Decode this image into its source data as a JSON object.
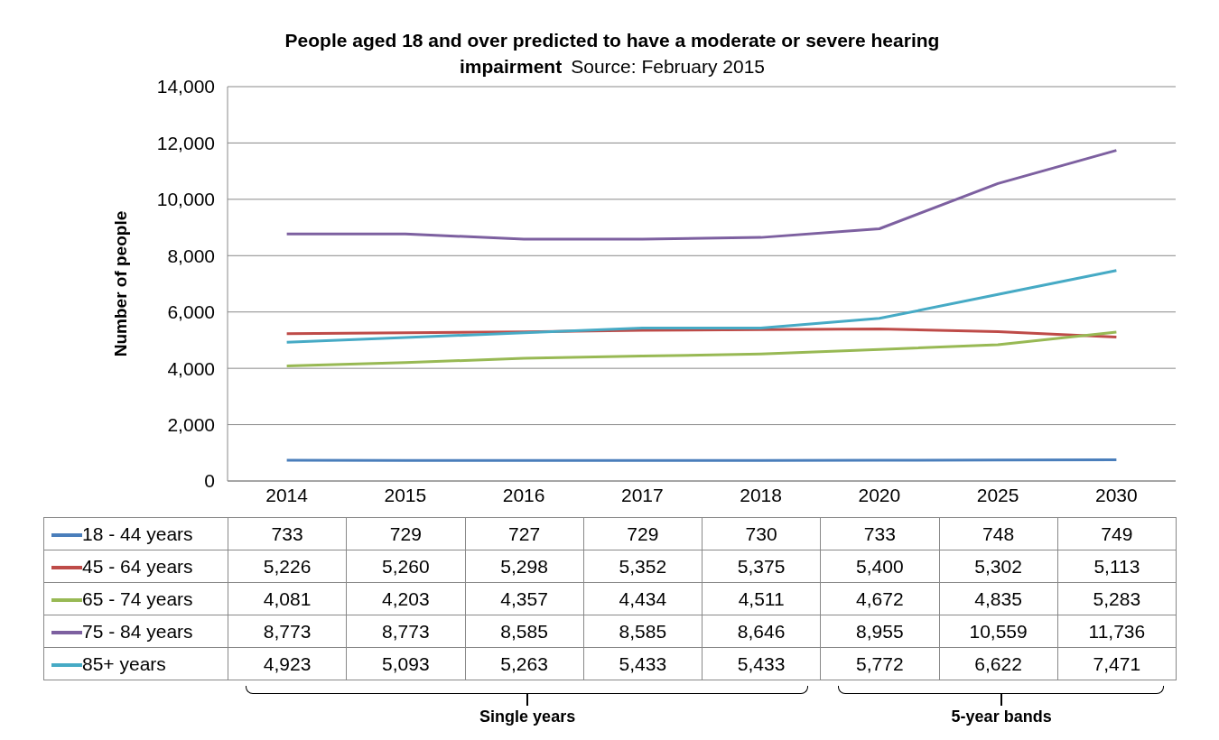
{
  "chart_data": {
    "type": "line",
    "title": "People aged 18 and over predicted to have a moderate or severe hearing impairment",
    "ylabel": "Number of people",
    "annotations": [
      "Source: February 2015",
      "Single years",
      "5-year bands"
    ],
    "categories": [
      "2014",
      "2015",
      "2016",
      "2017",
      "2018",
      "2020",
      "2025",
      "2030"
    ],
    "series": [
      {
        "name": "18 - 44 years",
        "color": "#4a7ebb",
        "values": [
          733,
          729,
          727,
          729,
          730,
          733,
          748,
          749
        ],
        "value_labels": [
          "733",
          "729",
          "727",
          "729",
          "730",
          "733",
          "748",
          "749"
        ]
      },
      {
        "name": "45 - 64 years",
        "color": "#be4b48",
        "values": [
          5226,
          5260,
          5298,
          5352,
          5375,
          5400,
          5302,
          5113
        ],
        "value_labels": [
          "5,226",
          "5,260",
          "5,298",
          "5,352",
          "5,375",
          "5,400",
          "5,302",
          "5,113"
        ]
      },
      {
        "name": "65 - 74 years",
        "color": "#98b954",
        "values": [
          4081,
          4203,
          4357,
          4434,
          4511,
          4672,
          4835,
          5283
        ],
        "value_labels": [
          "4,081",
          "4,203",
          "4,357",
          "4,434",
          "4,511",
          "4,672",
          "4,835",
          "5,283"
        ]
      },
      {
        "name": "75 - 84 years",
        "color": "#7d60a0",
        "values": [
          8773,
          8773,
          8585,
          8585,
          8646,
          8955,
          10559,
          11736
        ],
        "value_labels": [
          "8,773",
          "8,773",
          "8,585",
          "8,585",
          "8,646",
          "8,955",
          "10,559",
          "11,736"
        ]
      },
      {
        "name": "85+ years",
        "color": "#46aac5",
        "values": [
          4923,
          5093,
          5263,
          5433,
          5433,
          5772,
          6622,
          7471
        ],
        "value_labels": [
          "4,923",
          "5,093",
          "5,263",
          "5,433",
          "5,433",
          "5,772",
          "6,622",
          "7,471"
        ]
      }
    ],
    "ylim": [
      0,
      14000
    ],
    "yticks": [
      0,
      {
        "value": 2000,
        "label": "2,000"
      },
      {
        "value": 4000,
        "label": "4,000"
      },
      {
        "value": 6000,
        "label": "6,000"
      },
      {
        "value": 8000,
        "label": "8,000"
      },
      {
        "value": 10000,
        "label": "10,000"
      },
      {
        "value": 12000,
        "label": "12,000"
      },
      {
        "value": 14000,
        "label": "14,000"
      }
    ],
    "grid": "y",
    "legend": "bottom",
    "marker": "none",
    "line_style": "solid"
  }
}
